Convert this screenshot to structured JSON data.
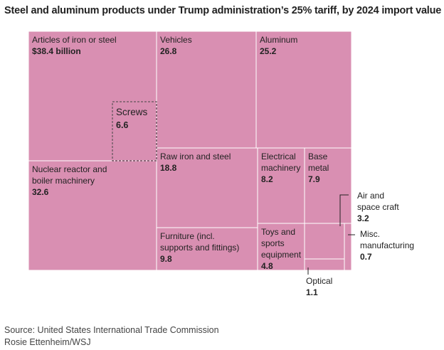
{
  "title": "Steel and aluminum products under Trump administration’s 25% tariff, by 2024 import value",
  "source": "Source: United States International Trade Commission",
  "credit": "Rosie Ettenheim/WSJ",
  "chart_data": {
    "type": "treemap",
    "unit": "$ billion",
    "fill_color": "#d98fb2",
    "border_color": "#ffffff",
    "items": [
      {
        "id": "iron-steel",
        "label": "Articles of iron or steel",
        "value_text": "$38.4 billion",
        "value": 38.4
      },
      {
        "id": "vehicles",
        "label": "Vehicles",
        "value_text": "26.8",
        "value": 26.8
      },
      {
        "id": "aluminum",
        "label": "Aluminum",
        "value_text": "25.2",
        "value": 25.2
      },
      {
        "id": "nuclear",
        "label": "Nuclear reactor and boiler machinery",
        "value_text": "32.6",
        "value": 32.6
      },
      {
        "id": "raw-iron",
        "label": "Raw iron and steel",
        "value_text": "18.8",
        "value": 18.8
      },
      {
        "id": "electrical",
        "label": "Electrical machinery",
        "value_text": "8.2",
        "value": 8.2
      },
      {
        "id": "base-metal",
        "label": "Base metal",
        "value_text": "7.9",
        "value": 7.9
      },
      {
        "id": "furniture",
        "label": "Furniture (incl. supports and fittings)",
        "value_text": "9.8",
        "value": 9.8
      },
      {
        "id": "toys",
        "label": "Toys and sports equipment",
        "value_text": "4.8",
        "value": 4.8
      },
      {
        "id": "aircraft",
        "label": "Air and space craft",
        "value_text": "3.2",
        "value": 3.2
      },
      {
        "id": "misc",
        "label": "Misc. manufacturing",
        "value_text": "0.7",
        "value": 0.7
      },
      {
        "id": "optical",
        "label": "Optical",
        "value_text": "1.1",
        "value": 1.1
      }
    ],
    "highlight": {
      "label": "Screws",
      "value_text": "6.6",
      "value": 6.6,
      "part_of": "iron-steel",
      "style": "dashed outline"
    }
  }
}
